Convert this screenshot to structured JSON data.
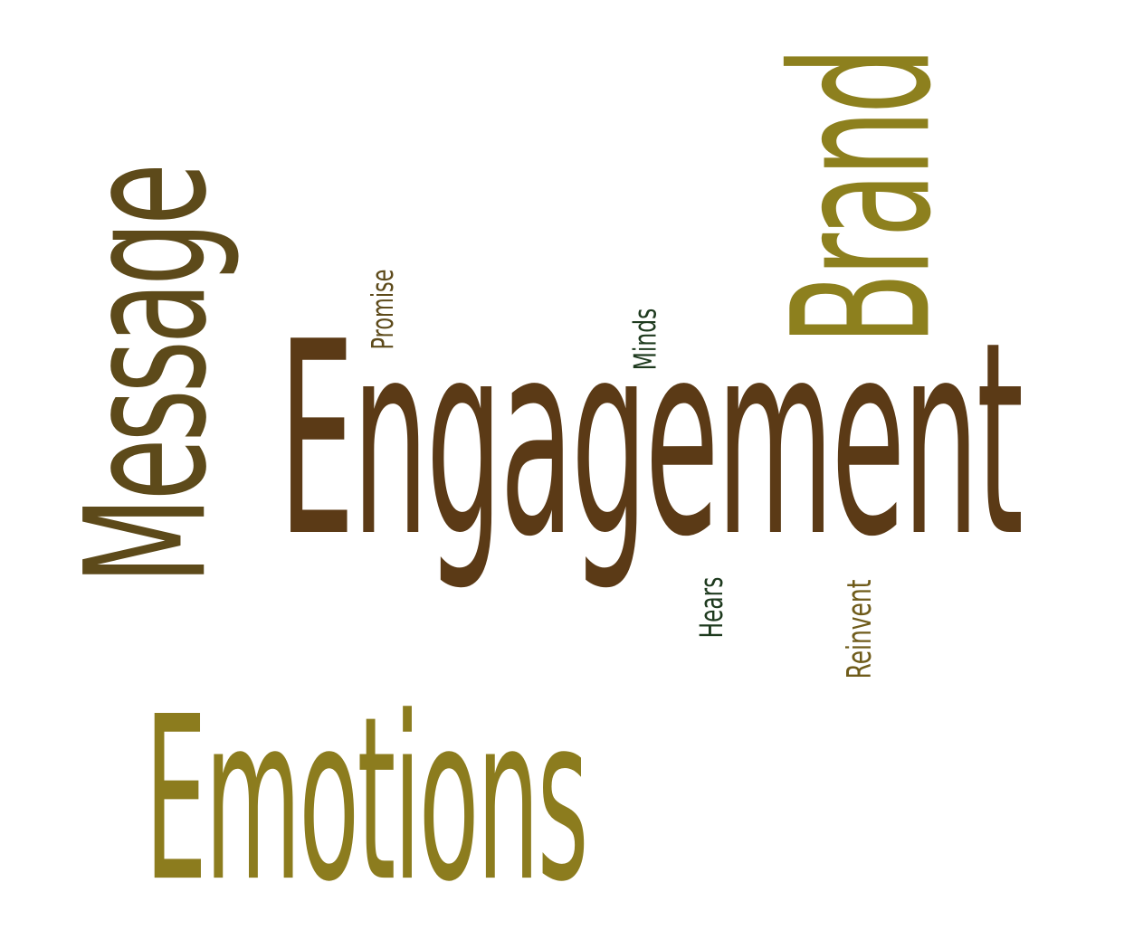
{
  "words": {
    "message": {
      "text": "Message",
      "color": "#5d4a1a"
    },
    "brand": {
      "text": "Brand",
      "color": "#8d801e"
    },
    "engagement": {
      "text": "Engagement",
      "color": "#5b3a16"
    },
    "emotions": {
      "text": "Emotions",
      "color": "#8c7c1e"
    },
    "promise": {
      "text": "Promise",
      "color": "#5d4a1a"
    },
    "minds": {
      "text": "Minds",
      "color": "#1e3a1e"
    },
    "hears": {
      "text": "Hears",
      "color": "#1e3a1e"
    },
    "reinvent": {
      "text": "Reinvent",
      "color": "#6f5b1a"
    }
  }
}
